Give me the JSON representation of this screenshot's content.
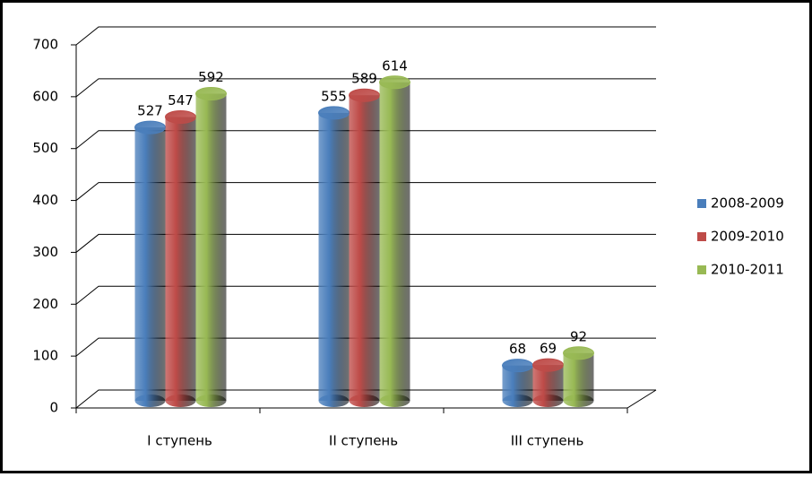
{
  "chart_data": {
    "type": "bar",
    "categories": [
      "I ступень",
      "II ступень",
      "III ступень"
    ],
    "series": [
      {
        "name": "2008-2009",
        "color": "#4a7ebb",
        "values": [
          527,
          555,
          68
        ]
      },
      {
        "name": "2009-2010",
        "color": "#be4b48",
        "values": [
          547,
          589,
          69
        ]
      },
      {
        "name": "2010-2011",
        "color": "#98b954",
        "values": [
          592,
          614,
          92
        ]
      }
    ],
    "ylim": [
      0,
      700
    ],
    "yticks": [
      0,
      100,
      200,
      300,
      400,
      500,
      600,
      700
    ],
    "grid": true,
    "legend": "right"
  }
}
